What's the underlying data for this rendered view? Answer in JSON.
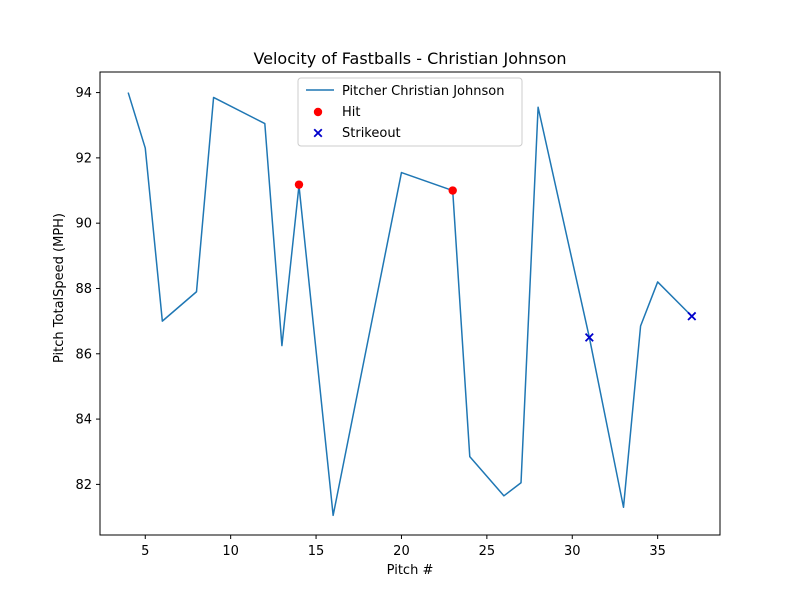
{
  "chart_data": {
    "type": "line",
    "title": "Velocity of Fastballs - Christian Johnson",
    "xlabel": "Pitch #",
    "ylabel": "Pitch TotalSpeed (MPH)",
    "xlim": [
      2.35,
      38.65
    ],
    "ylim": [
      80.45,
      94.63
    ],
    "xticks": [
      5,
      10,
      15,
      20,
      25,
      30,
      35
    ],
    "yticks": [
      82,
      84,
      86,
      88,
      90,
      92,
      94
    ],
    "grid": false,
    "legend_position": "top-center",
    "series": [
      {
        "name": "Pitcher Christian Johnson",
        "kind": "line",
        "color": "#1f77b4",
        "x": [
          4,
          5,
          6,
          8,
          9,
          12,
          13,
          14,
          16,
          20,
          23,
          24,
          26,
          27,
          28,
          31,
          33,
          34,
          35,
          37
        ],
        "y": [
          94.0,
          92.3,
          87.0,
          87.9,
          93.85,
          93.05,
          86.25,
          91.15,
          81.05,
          91.55,
          91.0,
          82.85,
          81.65,
          82.05,
          93.55,
          86.5,
          81.3,
          86.85,
          88.2,
          87.15
        ]
      },
      {
        "name": "Hit",
        "kind": "scatter",
        "marker": "circle",
        "color": "#ff0000",
        "x": [
          14,
          23
        ],
        "y": [
          91.18,
          91.0
        ]
      },
      {
        "name": "Strikeout",
        "kind": "scatter",
        "marker": "x",
        "color": "#0000cc",
        "x": [
          31,
          37
        ],
        "y": [
          86.5,
          87.15
        ]
      }
    ]
  }
}
